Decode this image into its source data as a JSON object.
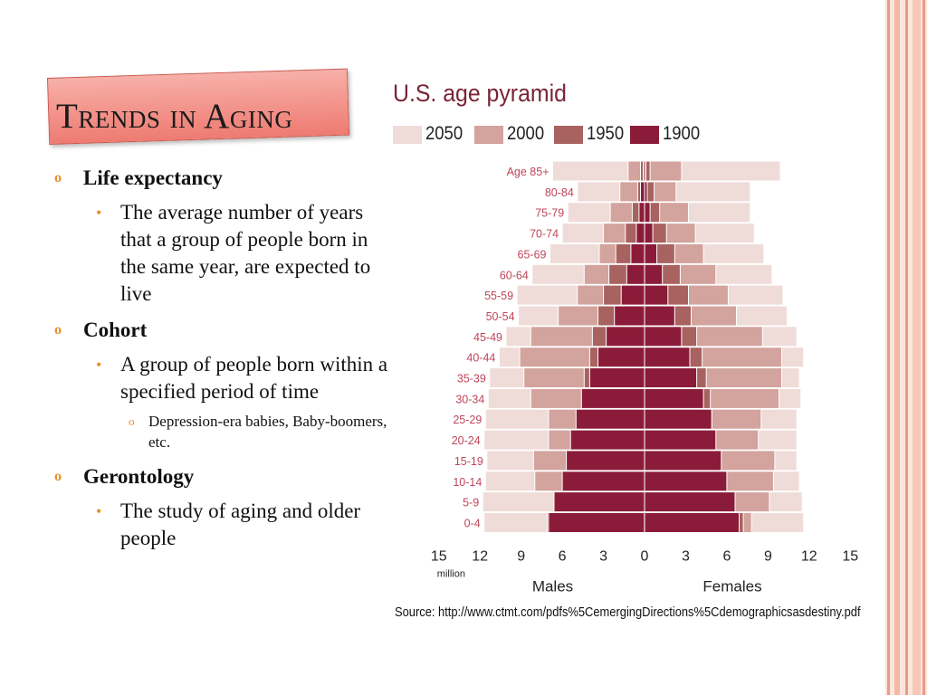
{
  "slide": {
    "title": "Trends in Aging"
  },
  "bullets": {
    "life_expectancy": "Life expectancy",
    "life_expectancy_def": "The average number of years that a group of people born in the same year, are expected to live",
    "cohort": "Cohort",
    "cohort_def": "A group of people born within a specified period of time",
    "cohort_example": "Depression-era babies, Baby-boomers, etc.",
    "gerontology": "Gerontology",
    "gerontology_def": "The study of aging and older people",
    "marker_l1": "o",
    "marker_l2": "•",
    "marker_l3": "o"
  },
  "colors": {
    "c2050": "#efdcd8",
    "c2000": "#d3a39d",
    "c1950": "#a8625f",
    "c1900": "#8b1c39",
    "title_bg": "#f2908a",
    "bullet": "#e8902a",
    "stripe_a": "#f6d0c4",
    "stripe_b": "#e89a86"
  },
  "chart_data": {
    "type": "bar",
    "title": "U.S. age pyramid",
    "series_names": [
      "2050",
      "2000",
      "1950",
      "1900"
    ],
    "categories": [
      "Age 85+",
      "80-84",
      "75-79",
      "70-74",
      "65-69",
      "60-64",
      "55-59",
      "50-54",
      "45-49",
      "40-44",
      "35-39",
      "30-34",
      "25-29",
      "20-24",
      "15-19",
      "10-14",
      "5-9",
      "0-4"
    ],
    "males": {
      "2050": [
        6.7,
        4.9,
        5.6,
        6.0,
        6.9,
        8.2,
        9.3,
        9.2,
        10.1,
        10.6,
        11.3,
        11.4,
        11.6,
        11.7,
        11.5,
        11.6,
        11.8,
        11.7
      ],
      "2000": [
        1.2,
        1.8,
        2.5,
        3.0,
        3.3,
        4.4,
        4.9,
        6.3,
        8.3,
        9.1,
        8.8,
        8.3,
        7.0,
        7.0,
        8.1,
        8.0,
        5.9,
        7.0
      ],
      "1950": [
        0.3,
        0.5,
        0.9,
        1.4,
        2.1,
        2.6,
        3.0,
        3.4,
        3.8,
        4.0,
        4.4,
        4.4,
        4.7,
        4.2,
        4.3,
        4.3,
        5.1,
        7.1
      ],
      "1900": [
        0.1,
        0.3,
        0.4,
        0.6,
        1.0,
        1.3,
        1.7,
        2.2,
        2.8,
        3.4,
        4.0,
        4.6,
        5.0,
        5.4,
        5.7,
        6.0,
        6.6,
        7.0
      ]
    },
    "females": {
      "2050": [
        9.9,
        7.7,
        7.7,
        8.0,
        8.7,
        9.3,
        10.1,
        10.4,
        11.1,
        11.6,
        11.3,
        11.4,
        11.1,
        11.1,
        11.1,
        11.3,
        11.5,
        11.6
      ],
      "2000": [
        2.7,
        2.3,
        3.2,
        3.7,
        4.3,
        5.2,
        6.1,
        6.7,
        8.6,
        10.0,
        10.0,
        9.8,
        8.5,
        8.3,
        9.5,
        9.4,
        9.1,
        7.8
      ],
      "1950": [
        0.4,
        0.7,
        1.1,
        1.6,
        2.2,
        2.6,
        3.2,
        3.4,
        3.8,
        4.2,
        4.5,
        4.8,
        4.9,
        4.1,
        4.2,
        4.2,
        5.0,
        7.2
      ],
      "1900": [
        0.1,
        0.2,
        0.4,
        0.6,
        0.9,
        1.3,
        1.7,
        2.2,
        2.7,
        3.3,
        3.8,
        4.3,
        4.9,
        5.2,
        5.6,
        6.0,
        6.6,
        6.9
      ]
    },
    "x_ticks": [
      "15",
      "12",
      "9",
      "6",
      "3",
      "0",
      "3",
      "6",
      "9",
      "12",
      "15"
    ],
    "x_unit": "million",
    "x_min": -15,
    "x_max": 15,
    "xlabel_left": "Males",
    "xlabel_right": "Females",
    "legend_position": "top",
    "grid": false,
    "source": "Source: http://www.ctmt.com/pdfs%5CemergingDirections%5Cdemographicsasdestiny.pdf"
  }
}
